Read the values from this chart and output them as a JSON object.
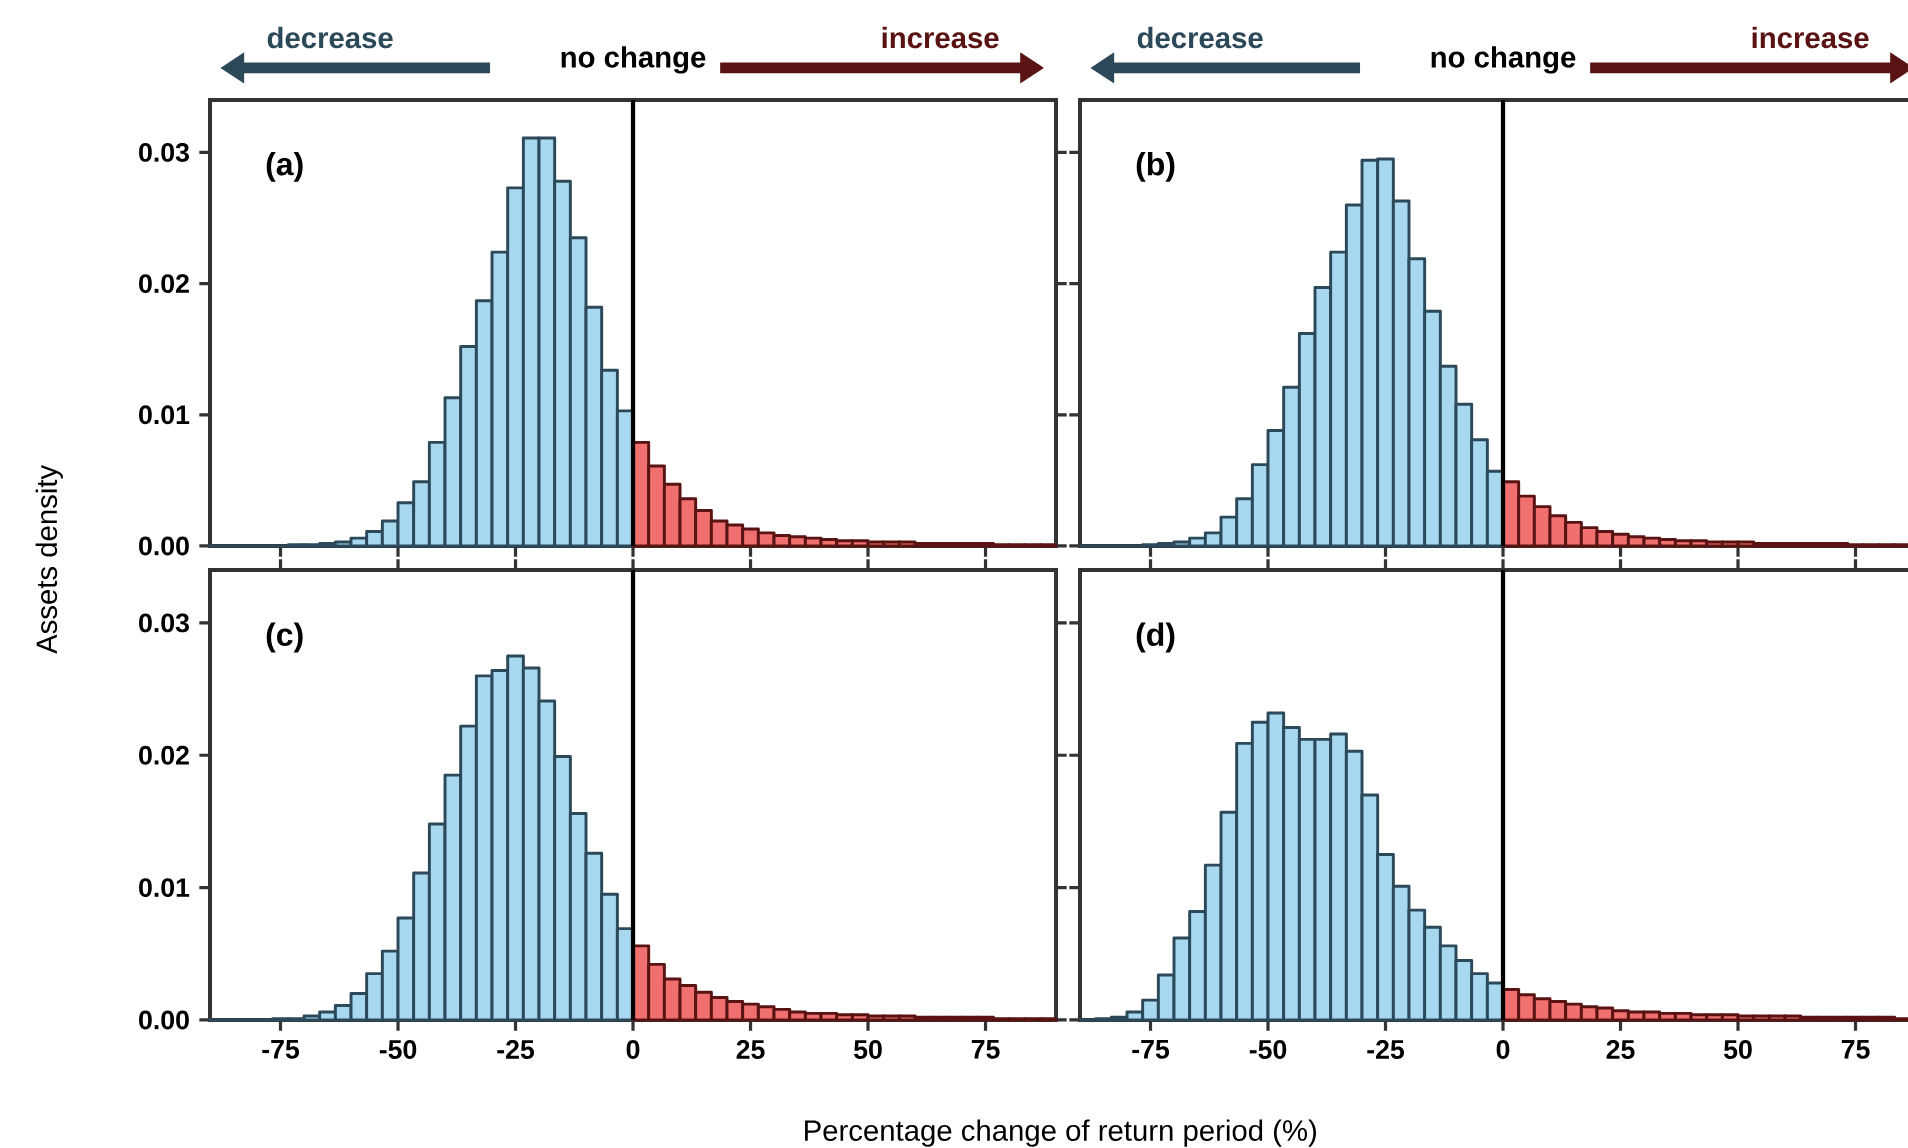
{
  "chart_data": [
    {
      "type": "histogram",
      "title": "(a)",
      "ylabel": "Assets density",
      "annotations": [
        "decrease",
        "no change",
        "increase"
      ],
      "bins": [
        -90,
        -86.67,
        -83.33,
        -80,
        -76.67,
        -73.33,
        -70,
        -66.67,
        -63.33,
        -60,
        -56.67,
        -53.33,
        -50,
        -46.67,
        -43.33,
        -40,
        -36.67,
        -33.33,
        -30,
        -26.67,
        -23.33,
        -20,
        -16.67,
        -13.33,
        -10,
        -6.67,
        -3.33,
        0,
        3.33,
        6.67,
        10,
        13.33,
        16.67,
        20,
        23.33,
        26.67,
        30,
        33.33,
        36.67,
        40,
        43.33,
        46.67,
        50,
        53.33,
        56.67,
        60,
        63.33,
        66.67,
        70,
        73.33,
        76.67,
        80,
        83.33,
        86.67,
        90
      ],
      "series": [
        {
          "color": "#a8d8f0",
          "values": [
            0,
            0,
            0,
            0,
            0,
            0.0001,
            0.0001,
            0.0002,
            0.0003,
            0.0006,
            0.0011,
            0.0019,
            0.0033,
            0.0049,
            0.0079,
            0.0113,
            0.0152,
            0.0187,
            0.0224,
            0.0273,
            0.0311,
            0.0311,
            0.0278,
            0.0235,
            0.0182,
            0.0134,
            0.0103,
            null,
            null,
            null,
            null,
            null,
            null,
            null,
            null,
            null,
            null,
            null,
            null,
            null,
            null,
            null,
            null,
            null,
            null,
            null,
            null,
            null,
            null,
            null,
            null,
            null,
            null,
            null
          ]
        },
        {
          "color": "#f07070",
          "values": [
            null,
            null,
            null,
            null,
            null,
            null,
            null,
            null,
            null,
            null,
            null,
            null,
            null,
            null,
            null,
            null,
            null,
            null,
            null,
            null,
            null,
            null,
            null,
            null,
            null,
            null,
            null,
            0.0079,
            0.0061,
            0.0047,
            0.0036,
            0.0027,
            0.0019,
            0.0016,
            0.0013,
            0.001,
            0.0008,
            0.0007,
            0.0006,
            0.0005,
            0.0004,
            0.0004,
            0.0003,
            0.0003,
            0.0003,
            0.0002,
            0.0002,
            0.0002,
            0.0002,
            0.0002,
            0.0001,
            0.0001,
            0.0001,
            0.0001
          ]
        }
      ],
      "xlim": [
        -90,
        90
      ],
      "ylim": [
        0,
        0.034
      ],
      "xticks": [
        -75,
        -50,
        -25,
        0,
        25,
        50,
        75
      ],
      "yticks": [
        {
          "value": 0,
          "label": "0.00"
        },
        {
          "value": 0.01,
          "label": "0.01"
        },
        {
          "value": 0.02,
          "label": "0.02"
        },
        {
          "value": 0.03,
          "label": "0.03"
        }
      ],
      "ref_lines": [
        {
          "axis": "x",
          "value": 0,
          "color": "#000000"
        }
      ],
      "tick_labels": "y"
    },
    {
      "type": "histogram",
      "title": "(b)",
      "annotations": [
        "decrease",
        "no change",
        "increase"
      ],
      "bins": [
        -90,
        -86.67,
        -83.33,
        -80,
        -76.67,
        -73.33,
        -70,
        -66.67,
        -63.33,
        -60,
        -56.67,
        -53.33,
        -50,
        -46.67,
        -43.33,
        -40,
        -36.67,
        -33.33,
        -30,
        -26.67,
        -23.33,
        -20,
        -16.67,
        -13.33,
        -10,
        -6.67,
        -3.33,
        0,
        3.33,
        6.67,
        10,
        13.33,
        16.67,
        20,
        23.33,
        26.67,
        30,
        33.33,
        36.67,
        40,
        43.33,
        46.67,
        50,
        53.33,
        56.67,
        60,
        63.33,
        66.67,
        70,
        73.33,
        76.67,
        80,
        83.33,
        86.67,
        90
      ],
      "series": [
        {
          "color": "#a8d8f0",
          "values": [
            0,
            0,
            0,
            0,
            0.0001,
            0.0002,
            0.0003,
            0.0006,
            0.001,
            0.0022,
            0.0036,
            0.0062,
            0.0088,
            0.0121,
            0.0162,
            0.0197,
            0.0224,
            0.026,
            0.0294,
            0.0295,
            0.0263,
            0.0219,
            0.0179,
            0.0137,
            0.0108,
            0.0081,
            0.0057,
            null,
            null,
            null,
            null,
            null,
            null,
            null,
            null,
            null,
            null,
            null,
            null,
            null,
            null,
            null,
            null,
            null,
            null,
            null,
            null,
            null,
            null,
            null,
            null,
            null,
            null,
            null
          ]
        },
        {
          "color": "#f07070",
          "values": [
            null,
            null,
            null,
            null,
            null,
            null,
            null,
            null,
            null,
            null,
            null,
            null,
            null,
            null,
            null,
            null,
            null,
            null,
            null,
            null,
            null,
            null,
            null,
            null,
            null,
            null,
            null,
            0.0049,
            0.0038,
            0.003,
            0.0023,
            0.0018,
            0.0014,
            0.0011,
            0.0009,
            0.0007,
            0.0006,
            0.0005,
            0.0004,
            0.0004,
            0.0003,
            0.0003,
            0.0003,
            0.0002,
            0.0002,
            0.0002,
            0.0002,
            0.0002,
            0.0002,
            0.0001,
            0.0001,
            0.0001,
            0.0001,
            0.0001
          ]
        }
      ],
      "xlim": [
        -90,
        90
      ],
      "ylim": [
        0,
        0.034
      ],
      "xticks": [
        -75,
        -50,
        -25,
        0,
        25,
        50,
        75
      ],
      "yticks": [
        0,
        0.01,
        0.02,
        0.03
      ],
      "ref_lines": [
        {
          "axis": "x",
          "value": 0,
          "color": "#000000"
        }
      ],
      "tick_labels": false
    },
    {
      "type": "histogram",
      "title": "(c)",
      "xlabel": "Percentage change of return period (%)",
      "bins": [
        -90,
        -86.67,
        -83.33,
        -80,
        -76.67,
        -73.33,
        -70,
        -66.67,
        -63.33,
        -60,
        -56.67,
        -53.33,
        -50,
        -46.67,
        -43.33,
        -40,
        -36.67,
        -33.33,
        -30,
        -26.67,
        -23.33,
        -20,
        -16.67,
        -13.33,
        -10,
        -6.67,
        -3.33,
        0,
        3.33,
        6.67,
        10,
        13.33,
        16.67,
        20,
        23.33,
        26.67,
        30,
        33.33,
        36.67,
        40,
        43.33,
        46.67,
        50,
        53.33,
        56.67,
        60,
        63.33,
        66.67,
        70,
        73.33,
        76.67,
        80,
        83.33,
        86.67,
        90
      ],
      "series": [
        {
          "color": "#a8d8f0",
          "values": [
            0,
            0,
            0,
            0,
            0.0001,
            0.0001,
            0.0003,
            0.0006,
            0.0011,
            0.002,
            0.0035,
            0.0052,
            0.0077,
            0.0111,
            0.0148,
            0.0185,
            0.0222,
            0.026,
            0.0264,
            0.0275,
            0.0266,
            0.0241,
            0.0199,
            0.0156,
            0.0126,
            0.0095,
            0.0069,
            null,
            null,
            null,
            null,
            null,
            null,
            null,
            null,
            null,
            null,
            null,
            null,
            null,
            null,
            null,
            null,
            null,
            null,
            null,
            null,
            null,
            null,
            null,
            null,
            null,
            null,
            null
          ]
        },
        {
          "color": "#f07070",
          "values": [
            null,
            null,
            null,
            null,
            null,
            null,
            null,
            null,
            null,
            null,
            null,
            null,
            null,
            null,
            null,
            null,
            null,
            null,
            null,
            null,
            null,
            null,
            null,
            null,
            null,
            null,
            null,
            0.0056,
            0.0042,
            0.0031,
            0.0026,
            0.0021,
            0.0017,
            0.0014,
            0.0012,
            0.001,
            0.0008,
            0.0006,
            0.0005,
            0.0005,
            0.0004,
            0.0004,
            0.0003,
            0.0003,
            0.0003,
            0.0002,
            0.0002,
            0.0002,
            0.0002,
            0.0002,
            0.0001,
            0.0001,
            0.0001,
            0.0001
          ]
        }
      ],
      "xlim": [
        -90,
        90
      ],
      "ylim": [
        0,
        0.034
      ],
      "xticks": [
        -75,
        -50,
        -25,
        0,
        25,
        50,
        75
      ],
      "yticks": [
        {
          "value": 0,
          "label": "0.00"
        },
        {
          "value": 0.01,
          "label": "0.01"
        },
        {
          "value": 0.02,
          "label": "0.02"
        },
        {
          "value": 0.03,
          "label": "0.03"
        }
      ],
      "ref_lines": [
        {
          "axis": "x",
          "value": 0,
          "color": "#000000"
        }
      ]
    },
    {
      "type": "histogram",
      "title": "(d)",
      "bins": [
        -90,
        -86.67,
        -83.33,
        -80,
        -76.67,
        -73.33,
        -70,
        -66.67,
        -63.33,
        -60,
        -56.67,
        -53.33,
        -50,
        -46.67,
        -43.33,
        -40,
        -36.67,
        -33.33,
        -30,
        -26.67,
        -23.33,
        -20,
        -16.67,
        -13.33,
        -10,
        -6.67,
        -3.33,
        0,
        3.33,
        6.67,
        10,
        13.33,
        16.67,
        20,
        23.33,
        26.67,
        30,
        33.33,
        36.67,
        40,
        43.33,
        46.67,
        50,
        53.33,
        56.67,
        60,
        63.33,
        66.67,
        70,
        73.33,
        76.67,
        80,
        83.33,
        86.67,
        90
      ],
      "series": [
        {
          "color": "#a8d8f0",
          "values": [
            0,
            0.0001,
            0.0002,
            0.0006,
            0.0015,
            0.0034,
            0.0062,
            0.0082,
            0.0117,
            0.0157,
            0.0209,
            0.0225,
            0.0232,
            0.0221,
            0.0212,
            0.0212,
            0.0216,
            0.0203,
            0.017,
            0.0125,
            0.0101,
            0.0083,
            0.007,
            0.0056,
            0.0045,
            0.0035,
            0.0028,
            null,
            null,
            null,
            null,
            null,
            null,
            null,
            null,
            null,
            null,
            null,
            null,
            null,
            null,
            null,
            null,
            null,
            null,
            null,
            null,
            null,
            null,
            null,
            null,
            null,
            null,
            null
          ]
        },
        {
          "color": "#f07070",
          "values": [
            null,
            null,
            null,
            null,
            null,
            null,
            null,
            null,
            null,
            null,
            null,
            null,
            null,
            null,
            null,
            null,
            null,
            null,
            null,
            null,
            null,
            null,
            null,
            null,
            null,
            null,
            null,
            0.0023,
            0.0019,
            0.0016,
            0.0014,
            0.0012,
            0.001,
            0.0009,
            0.0007,
            0.0006,
            0.0006,
            0.0005,
            0.0005,
            0.0004,
            0.0004,
            0.0004,
            0.0003,
            0.0003,
            0.0003,
            0.0003,
            0.0002,
            0.0002,
            0.0002,
            0.0002,
            0.0002,
            0.0002,
            0.0001,
            0.0001
          ]
        }
      ],
      "xlim": [
        -90,
        90
      ],
      "ylim": [
        0,
        0.034
      ],
      "xticks": [
        -75,
        -50,
        -25,
        0,
        25,
        50,
        75
      ],
      "yticks": [
        0,
        0.01,
        0.02,
        0.03
      ],
      "ref_lines": [
        {
          "axis": "x",
          "value": 0,
          "color": "#000000"
        }
      ],
      "tick_labels": "x"
    }
  ]
}
